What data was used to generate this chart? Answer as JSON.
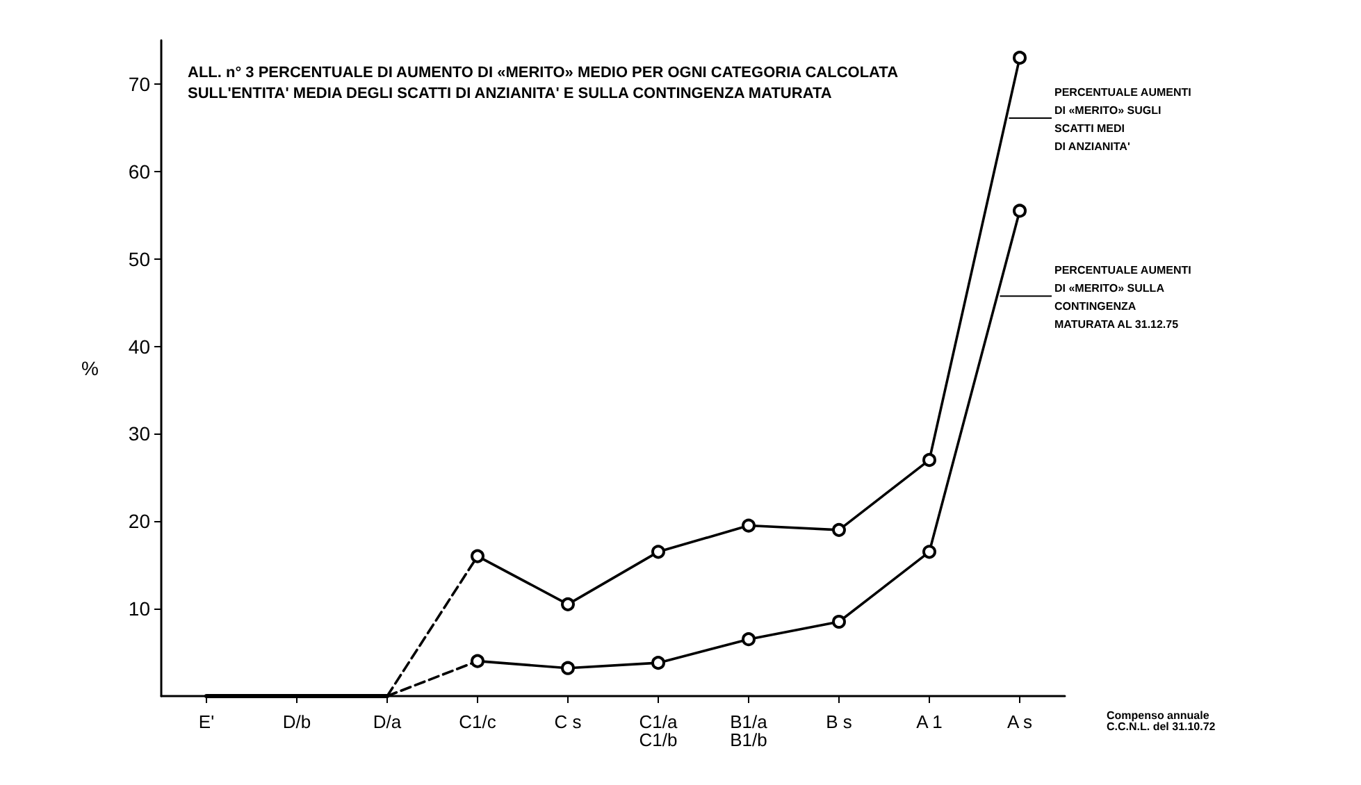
{
  "chart_data": {
    "type": "line",
    "title": "ALL. n° 3 PERCENTUALE DI AUMENTO DI «MERITO» MEDIO PER OGNI CATEGORIA CALCOLATA\nSULL'ENTITA' MEDIA DEGLI SCATTI DI ANZIANITA' E SULLA CONTINGENZA MATURATA",
    "xlabel": "Compenso annuale\nC.C.N.L. del 31.10.72",
    "ylabel": "%",
    "categories": [
      "E'",
      "D/b",
      "D/a",
      "C1/c",
      "C s",
      "C1/a\nC1/b",
      "B1/a\nB1/b",
      "B s",
      "A 1",
      "A s"
    ],
    "series": [
      {
        "color": "#000000",
        "line_style": "solid",
        "values": [
          0,
          0,
          0,
          null,
          null,
          null,
          null,
          null,
          null,
          null
        ]
      },
      {
        "color": "#000000",
        "line_style": "dashed",
        "values": [
          null,
          null,
          0,
          16,
          null,
          null,
          null,
          null,
          null,
          null
        ]
      },
      {
        "color": "#000000",
        "line_style": "dashed",
        "values": [
          null,
          null,
          0,
          4,
          null,
          null,
          null,
          null,
          null,
          null
        ]
      },
      {
        "name": "PERCENTUALE AUMENTI\nDI «MERITO» SUGLI\nSCATTI MEDI\nDI ANZIANITA'",
        "color": "#000000",
        "line_style": "solid",
        "marker": "circle",
        "values": [
          null,
          null,
          null,
          16,
          10.5,
          16.5,
          19.5,
          19,
          27,
          73
        ]
      },
      {
        "name": "PERCENTUALE AUMENTI\nDI «MERITO» SULLA\nCONTINGENZA\nMATURATA AL 31.12.75",
        "color": "#000000",
        "line_style": "solid",
        "marker": "circle",
        "values": [
          null,
          null,
          null,
          4,
          3.2,
          3.8,
          6.5,
          8.5,
          16.5,
          55.5
        ]
      }
    ],
    "ylim": [
      0,
      75
    ],
    "yticks": [
      10,
      20,
      30,
      40,
      50,
      60,
      70
    ],
    "grid": false,
    "legend": "top right"
  }
}
